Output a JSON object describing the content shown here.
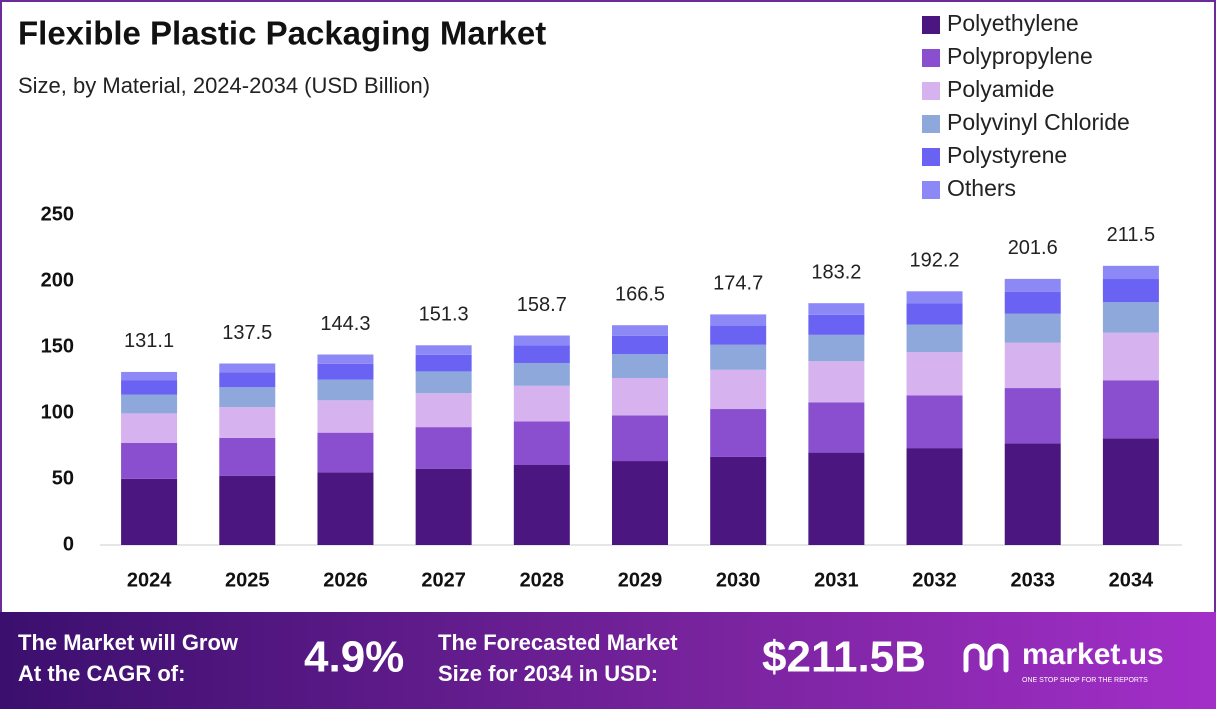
{
  "chart_data": {
    "type": "stacked_bar",
    "title": "Flexible Plastic Packaging Market",
    "subtitle": "Size, by Material, 2024-2034 (USD Billion)",
    "categories": [
      "2024",
      "2025",
      "2026",
      "2027",
      "2028",
      "2029",
      "2030",
      "2031",
      "2032",
      "2033",
      "2034"
    ],
    "series": [
      {
        "name": "Polyethylene",
        "color": "#4b1680",
        "values": [
          50.1,
          52.5,
          55.1,
          57.8,
          60.6,
          63.6,
          66.7,
          70.0,
          73.4,
          77.0,
          80.8
        ]
      },
      {
        "name": "Polypropylene",
        "color": "#8a4fcf",
        "values": [
          27.3,
          28.6,
          30.0,
          31.5,
          33.0,
          34.6,
          36.3,
          38.1,
          40.0,
          41.9,
          44.0
        ]
      },
      {
        "name": "Polyamide",
        "color": "#d6b2ef",
        "values": [
          22.3,
          23.4,
          24.5,
          25.7,
          27.0,
          28.3,
          29.7,
          31.1,
          32.7,
          34.3,
          36.0
        ]
      },
      {
        "name": "Polyvinyl Chloride",
        "color": "#8fa8dc",
        "values": [
          14.3,
          15.0,
          15.7,
          16.5,
          17.3,
          18.1,
          19.0,
          20.0,
          20.9,
          22.0,
          23.1
        ]
      },
      {
        "name": "Polystyrene",
        "color": "#6a62f2",
        "values": [
          10.9,
          11.4,
          12.0,
          12.6,
          13.2,
          13.8,
          14.5,
          15.2,
          16.0,
          16.7,
          17.6
        ]
      },
      {
        "name": "Others",
        "color": "#8c89f6",
        "values": [
          6.2,
          6.6,
          7.0,
          7.2,
          7.6,
          8.1,
          8.5,
          8.8,
          9.2,
          9.7,
          10.0
        ]
      }
    ],
    "totals": [
      131.1,
      137.5,
      144.3,
      151.3,
      158.7,
      166.5,
      174.7,
      183.2,
      192.2,
      201.6,
      211.5
    ],
    "ylim": [
      0,
      250
    ],
    "yticks": [
      0,
      50,
      100,
      150,
      200,
      250
    ],
    "grid": false,
    "legend": "top-right"
  },
  "footer": {
    "cagr_label": [
      "The Market will Grow",
      "At the CAGR of:"
    ],
    "cagr": "4.9%",
    "forecast_label": [
      "The Forecasted Market",
      "Size for 2034 in USD:"
    ],
    "forecast": "$211.5B",
    "brand": "market.us",
    "tagline": "ONE STOP SHOP FOR THE REPORTS"
  }
}
